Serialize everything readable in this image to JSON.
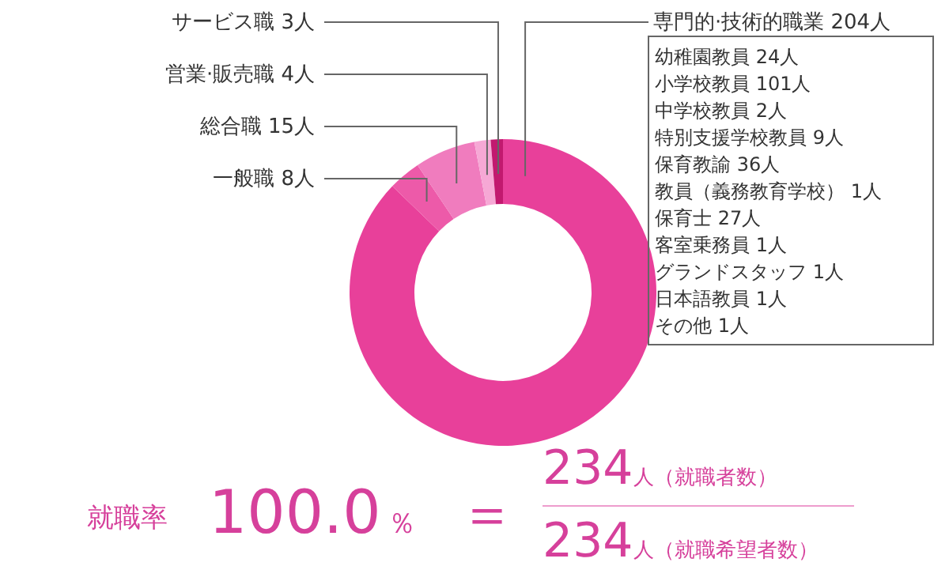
{
  "chart_data": {
    "type": "donut",
    "categories": [
      "専門的·技術的職業",
      "一般職",
      "総合職",
      "営業·販売職",
      "サービス職"
    ],
    "values": [
      204,
      8,
      15,
      4,
      3
    ],
    "value_labels": [
      "204人",
      "8人",
      "15人",
      "4人",
      "3人"
    ],
    "colors": [
      "#e8409a",
      "#ed5aa9",
      "#f07cbe",
      "#f6a8d5",
      "#c2196f"
    ],
    "legend": false,
    "annotations": [
      "幼稚園教員 24人",
      "小学校教員 101人",
      "中学校教員 2人",
      "特別支援学校教員 9人",
      "保育教諭 36人",
      "教員（義務教育学校） 1人",
      "保育士 27人",
      "客室乗務員 1人",
      "グランドスタッフ 1人",
      "日本語教員 1人",
      "その他 1人",
      "就職率",
      "100.0％",
      "＝",
      "234人（就職者数）",
      "234人（就職希望者数）"
    ]
  }
}
